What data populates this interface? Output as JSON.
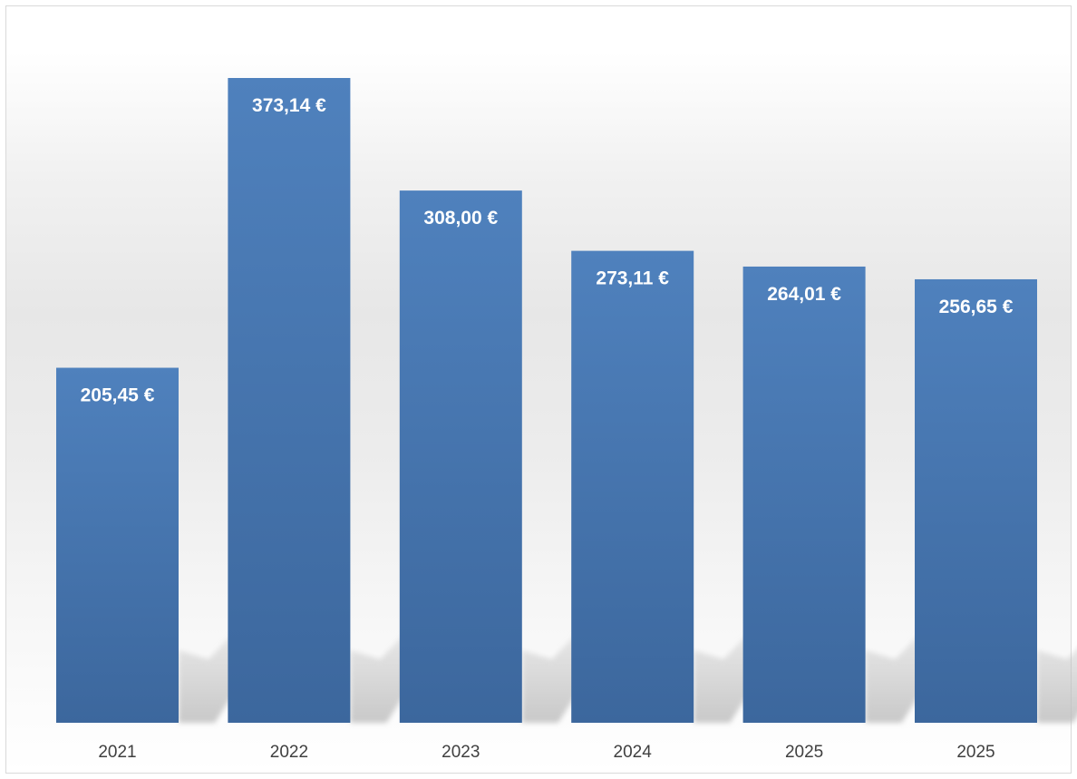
{
  "chart_data": {
    "type": "bar",
    "categories": [
      "2021",
      "2022",
      "2023",
      "2024",
      "2025",
      "2025"
    ],
    "values": [
      205.45,
      373.14,
      308.0,
      273.11,
      264.01,
      256.65
    ],
    "data_labels": [
      "205,45 €",
      "373,14 €",
      "308,00 €",
      "273,11 €",
      "264,01 €",
      "256,65 €"
    ],
    "title": "",
    "xlabel": "",
    "ylabel": "",
    "ylim": [
      0,
      373.14
    ],
    "grid": false,
    "legend": "none",
    "colors": {
      "bar_top": "#4f81bd",
      "bar_bottom": "#3c679d",
      "shadow": "#bfbfbf",
      "label": "#ffffff",
      "tick": "#404040"
    }
  }
}
